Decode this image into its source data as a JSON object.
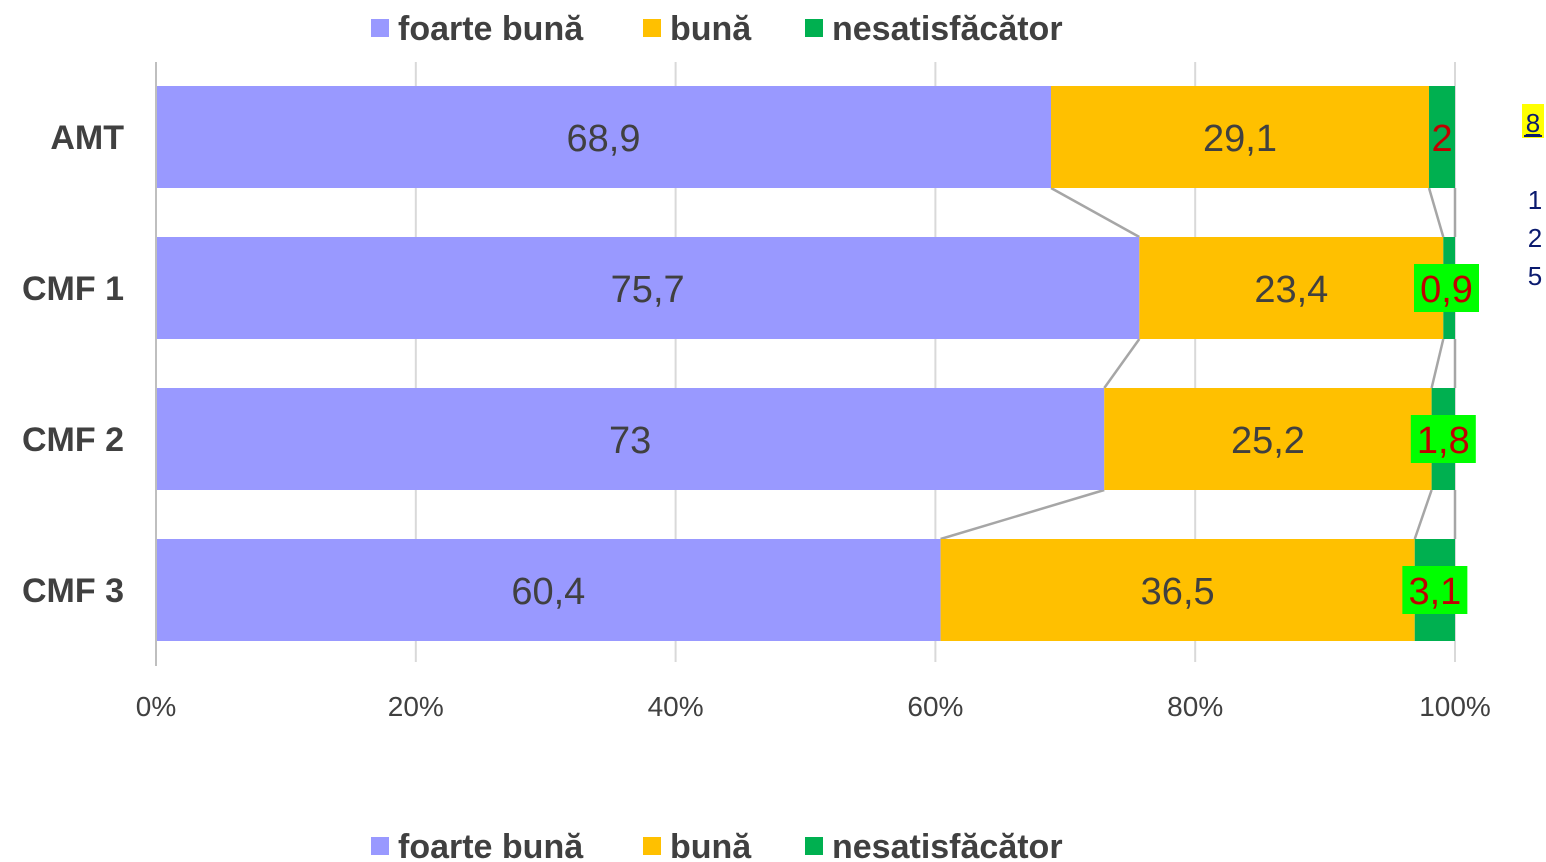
{
  "chart_data": {
    "type": "bar",
    "orientation": "horizontal",
    "stacked": true,
    "normalized": true,
    "categories": [
      "AMT",
      "CMF 1",
      "CMF 2",
      "CMF 3"
    ],
    "series": [
      {
        "name": "foarte bună",
        "color": "#9999ff",
        "values": [
          68.9,
          75.7,
          73,
          60.4
        ],
        "labels": [
          "68,9",
          "75,7",
          "73",
          "60,4"
        ]
      },
      {
        "name": "bună",
        "color": "#ffc000",
        "values": [
          29.1,
          23.4,
          25.2,
          36.5
        ],
        "labels": [
          "29,1",
          "23,4",
          "25,2",
          "36,5"
        ]
      },
      {
        "name": "nesatisfăcător",
        "color": "#00b050",
        "values": [
          2,
          0.9,
          1.8,
          3.1
        ],
        "labels": [
          "2",
          "0,9",
          "1,8",
          "3,1"
        ]
      }
    ],
    "x_ticks": [
      "0%",
      "20%",
      "40%",
      "60%",
      "80%",
      "100%"
    ],
    "xlim": [
      0,
      100
    ],
    "grid": true,
    "series_lines": true,
    "legend_position": "top and bottom",
    "highlight_color": "#00ff00",
    "highlight_text_color": "#c00000"
  },
  "side_notes": {
    "highlighted": "8",
    "highlight_color": "#ffff00",
    "lines": [
      "1",
      "2",
      "5"
    ]
  }
}
